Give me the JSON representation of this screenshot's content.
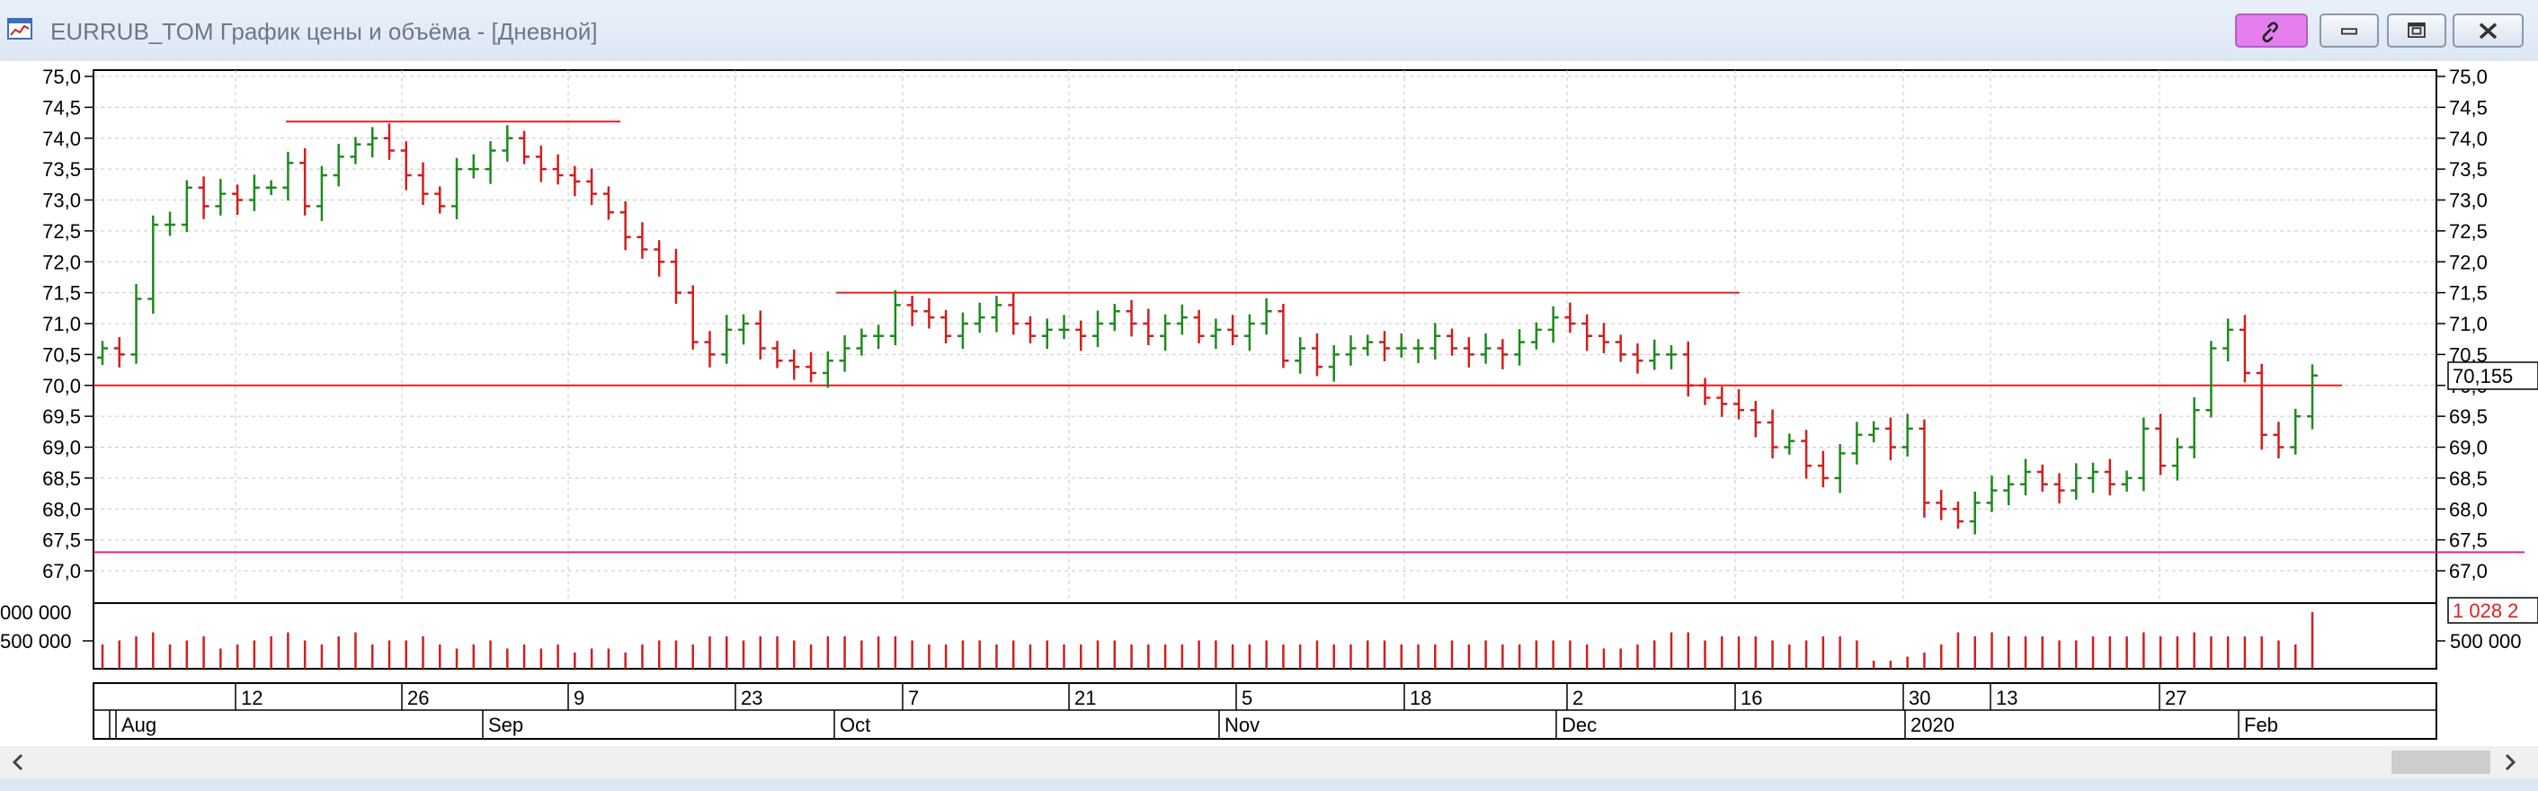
{
  "window": {
    "title": "EURRUB_TOM График цены и объёма - [Дневной]",
    "icon": "chart-window-icon",
    "buttons": {
      "link": "link-icon",
      "minimize": "minimize-icon",
      "maximize": "maximize-icon",
      "close": "close-icon"
    }
  },
  "price_axis": {
    "ticks": [
      "75,0",
      "74,5",
      "74,0",
      "73,5",
      "73,0",
      "72,5",
      "72,0",
      "71,5",
      "71,0",
      "70,5",
      "70,0",
      "69,5",
      "69,0",
      "68,5",
      "68,0",
      "67,5",
      "67,0"
    ],
    "current_price_label": "70,155"
  },
  "volume_axis": {
    "left_labels": [
      "000 000",
      "500 000"
    ],
    "right_labels": [
      "500 000"
    ],
    "current_volume_label": "1 028 2"
  },
  "time_axis": {
    "day_labels": [
      "12",
      "26",
      "9",
      "23",
      "7",
      "21",
      "5",
      "18",
      "2",
      "16",
      "30",
      "13",
      "27"
    ],
    "month_labels": [
      "Aug",
      "Sep",
      "Oct",
      "Nov",
      "Dec",
      "2020",
      "Feb"
    ]
  },
  "chart_data": {
    "type": "ohlc",
    "instrument": "EURRUB_TOM",
    "timeframe": "Дневной",
    "ylim": [
      67.0,
      75.0
    ],
    "horizontal_lines": [
      {
        "price": 74.27,
        "color": "#e02020"
      },
      {
        "price": 71.5,
        "color": "#e02020"
      },
      {
        "price": 70.0,
        "color": "#e02020"
      },
      {
        "price": 67.3,
        "color": "#e0209a"
      }
    ],
    "close_series": [
      70.6,
      70.5,
      71.4,
      72.6,
      72.6,
      73.2,
      72.9,
      73.1,
      73.0,
      73.2,
      73.2,
      73.6,
      72.9,
      73.4,
      73.7,
      73.9,
      74.0,
      73.8,
      73.4,
      73.1,
      72.9,
      73.5,
      73.5,
      73.8,
      74.0,
      73.7,
      73.5,
      73.4,
      73.3,
      73.1,
      72.8,
      72.4,
      72.2,
      72.0,
      71.5,
      70.7,
      70.5,
      70.9,
      71.0,
      70.6,
      70.4,
      70.3,
      70.2,
      70.4,
      70.6,
      70.8,
      70.8,
      71.3,
      71.2,
      71.1,
      70.8,
      71.0,
      71.1,
      71.3,
      71.0,
      70.8,
      70.9,
      70.9,
      70.8,
      71.0,
      71.2,
      71.0,
      70.8,
      71.0,
      71.1,
      70.8,
      70.9,
      70.8,
      71.0,
      71.2,
      70.4,
      70.6,
      70.3,
      70.5,
      70.6,
      70.7,
      70.6,
      70.6,
      70.6,
      70.8,
      70.6,
      70.5,
      70.6,
      70.5,
      70.7,
      70.9,
      71.1,
      71.0,
      70.8,
      70.7,
      70.5,
      70.4,
      70.5,
      70.5,
      70.0,
      69.8,
      69.7,
      69.6,
      69.4,
      69.0,
      69.1,
      68.7,
      68.5,
      68.9,
      69.2,
      69.3,
      69.0,
      69.3,
      68.1,
      68.0,
      67.8,
      68.1,
      68.3,
      68.4,
      68.6,
      68.4,
      68.3,
      68.5,
      68.6,
      68.4,
      68.5,
      69.3,
      68.7,
      69.0,
      69.6,
      70.6,
      70.9,
      70.2,
      69.2,
      69.0,
      69.5,
      70.16
    ],
    "volume_series_relative": [
      0.6,
      0.7,
      0.8,
      0.9,
      0.6,
      0.7,
      0.8,
      0.5,
      0.6,
      0.7,
      0.8,
      0.9,
      0.7,
      0.6,
      0.8,
      0.9,
      0.6,
      0.7,
      0.7,
      0.8,
      0.6,
      0.5,
      0.6,
      0.7,
      0.5,
      0.6,
      0.5,
      0.6,
      0.4,
      0.5,
      0.5,
      0.4,
      0.6,
      0.7,
      0.7,
      0.6,
      0.8,
      0.8,
      0.7,
      0.8,
      0.8,
      0.7,
      0.6,
      0.8,
      0.8,
      0.7,
      0.8,
      0.8,
      0.7,
      0.6,
      0.6,
      0.7,
      0.7,
      0.6,
      0.7,
      0.6,
      0.7,
      0.6,
      0.6,
      0.7,
      0.7,
      0.6,
      0.6,
      0.6,
      0.6,
      0.7,
      0.7,
      0.6,
      0.6,
      0.7,
      0.6,
      0.6,
      0.7,
      0.6,
      0.6,
      0.7,
      0.7,
      0.6,
      0.6,
      0.6,
      0.7,
      0.6,
      0.7,
      0.6,
      0.6,
      0.7,
      0.7,
      0.7,
      0.6,
      0.5,
      0.5,
      0.6,
      0.7,
      0.9,
      0.9,
      0.7,
      0.8,
      0.8,
      0.8,
      0.7,
      0.6,
      0.7,
      0.8,
      0.8,
      0.7,
      0.2,
      0.2,
      0.3,
      0.4,
      0.6,
      0.9,
      0.8,
      0.9,
      0.8,
      0.8,
      0.8,
      0.7,
      0.7,
      0.8,
      0.8,
      0.8,
      0.9,
      0.8,
      0.8,
      0.9,
      0.8,
      0.8,
      0.8,
      0.8,
      0.7,
      0.6,
      1.4
    ]
  }
}
